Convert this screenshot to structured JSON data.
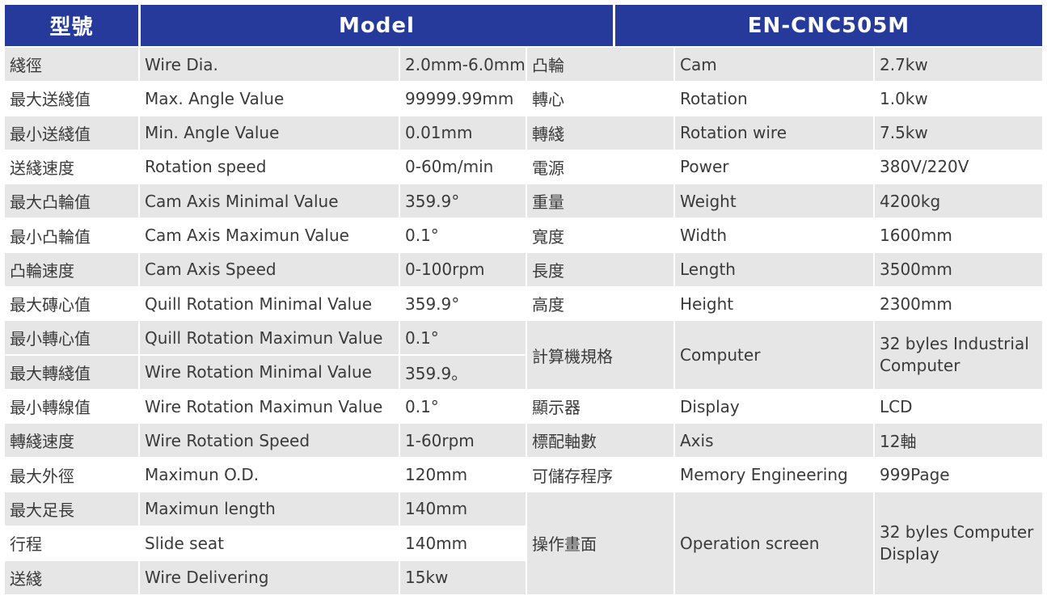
{
  "header": {
    "col1": "型號",
    "col2": "Model",
    "col3": "EN-CNC505M"
  },
  "left_rows": [
    {
      "zh": "綫徑",
      "en": "Wire Dia.",
      "val": "2.0mm-6.0mm"
    },
    {
      "zh": "最大送綫值",
      "en": "Max. Angle Value",
      "val": "99999.99mm"
    },
    {
      "zh": "最小送綫值",
      "en": "Min. Angle Value",
      "val": "0.01mm"
    },
    {
      "zh": "送綫速度",
      "en": "Rotation speed",
      "val": "0-60m/min"
    },
    {
      "zh": "最大凸輪值",
      "en": "Cam Axis Minimal Value",
      "val": "359.9°"
    },
    {
      "zh": "最小凸輪值",
      "en": "Cam Axis Maximun Value",
      "val": "0.1°"
    },
    {
      "zh": "凸輪速度",
      "en": "Cam Axis Speed",
      "val": "0-100rpm"
    },
    {
      "zh": "最大磚心值",
      "en": "Quill Rotation Minimal Value",
      "val": "359.9°"
    },
    {
      "zh": "最小轉心值",
      "en": "Quill Rotation Maximun Value",
      "val": "0.1°"
    },
    {
      "zh": "最大轉綫值",
      "en": "Wire Rotation Minimal Value",
      "val": "359.9。"
    },
    {
      "zh": "最小轉線值",
      "en": "Wire Rotation Maximun Value",
      "val": "0.1°"
    },
    {
      "zh": "轉綫速度",
      "en": "Wire Rotation Speed",
      "val": "1-60rpm"
    },
    {
      "zh": "最大外徑",
      "en": "Maximun O.D.",
      "val": "120mm"
    },
    {
      "zh": "最大足長",
      "en": "Maximun length",
      "val": "140mm"
    },
    {
      "zh": "行程",
      "en": "Slide seat",
      "val": "140mm"
    },
    {
      "zh": "送綫",
      "en": "Wire Delivering",
      "val": "15kw"
    }
  ],
  "right_rows": [
    {
      "zh": "凸輪",
      "en": "Cam",
      "val": "2.7kw"
    },
    {
      "zh": "轉心",
      "en": "Rotation",
      "val": "1.0kw"
    },
    {
      "zh": "轉綫",
      "en": "Rotation wire",
      "val": "7.5kw"
    },
    {
      "zh": "電源",
      "en": "Power",
      "val": "380V/220V"
    },
    {
      "zh": "重量",
      "en": "Weight",
      "val": "4200kg"
    },
    {
      "zh": "寬度",
      "en": "Width",
      "val": "1600mm"
    },
    {
      "zh": "長度",
      "en": "Length",
      "val": "3500mm"
    },
    {
      "zh": "高度",
      "en": "Height",
      "val": "2300mm"
    },
    {
      "zh": "計算機規格",
      "en": "Computer",
      "val": "32 byles Industrial Computer"
    },
    {
      "zh": "顯示器",
      "en": "Display",
      "val": "LCD"
    },
    {
      "zh": "標配軸數",
      "en": "Axis",
      "val": "12軸"
    },
    {
      "zh": "可儲存程序",
      "en": "Memory Engineering",
      "val": "999Page"
    },
    {
      "zh": "操作畫面",
      "en": "Operation screen",
      "val": "32 byles Computer Display"
    }
  ]
}
